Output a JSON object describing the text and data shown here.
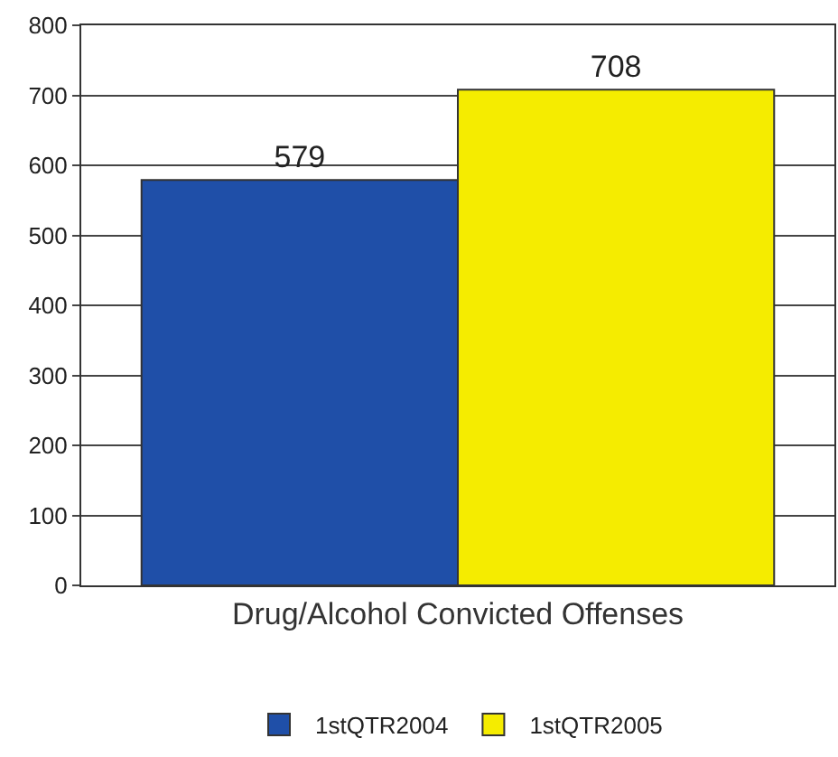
{
  "chart_data": {
    "type": "bar",
    "categories": [
      "Drug/Alcohol Convicted Offenses"
    ],
    "series": [
      {
        "name": "1stQTR2004",
        "color": "#1f4fa8",
        "values": [
          579
        ]
      },
      {
        "name": "1stQTR2005",
        "color": "#f5ec00",
        "values": [
          708
        ]
      }
    ],
    "ylim": [
      0,
      800
    ],
    "yticks": [
      0,
      100,
      200,
      300,
      400,
      500,
      600,
      700,
      800
    ],
    "grid": "y",
    "legend": "bottom",
    "data_labels": true
  }
}
